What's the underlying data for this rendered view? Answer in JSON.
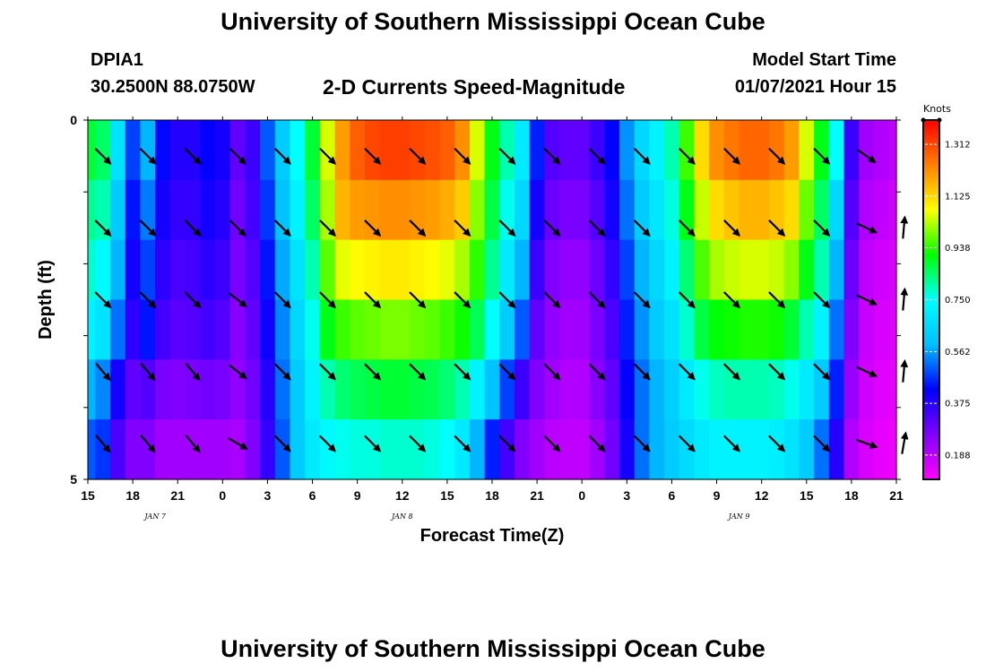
{
  "header": {
    "title": "University of Southern Mississippi Ocean Cube",
    "footer_title": "University of Southern Mississippi Ocean Cube",
    "station": "DPIA1",
    "coords": "30.2500N 88.0750W",
    "subtitle": "2-D Currents Speed-Magnitude",
    "model_label": "Model Start Time",
    "model_time": "01/07/2021 Hour 15"
  },
  "chart_data": {
    "type": "heatmap",
    "title": "2-D Currents Speed-Magnitude",
    "xlabel": "Forecast Time(Z)",
    "ylabel": "Depth (ft)",
    "colorbar_unit": "Knots",
    "x_ticks": [
      "15",
      "18",
      "21",
      "0",
      "3",
      "6",
      "9",
      "12",
      "15",
      "18",
      "21",
      "0",
      "3",
      "6",
      "9",
      "12",
      "15",
      "18",
      "21"
    ],
    "date_labels": [
      {
        "text": "JAN 7",
        "tick_index": 1.5
      },
      {
        "text": "JAN 8",
        "tick_index": 7
      },
      {
        "text": "JAN 9",
        "tick_index": 14.5
      }
    ],
    "y_tick_labels": [
      {
        "text": "0",
        "depth": 0
      },
      {
        "text": "5",
        "depth": 5
      }
    ],
    "ylim": [
      0,
      5
    ],
    "depth_levels": [
      0.5,
      1.5,
      2.5,
      3.5,
      4.5
    ],
    "colorbar_ticks": [
      "1.312",
      "1.125",
      "0.938",
      "0.750",
      "0.562",
      "0.375",
      "0.188"
    ],
    "colorbar_range": [
      0.1,
      1.4
    ],
    "colormap": [
      "#ff00ff",
      "#8000ff",
      "#0000ff",
      "#00bfff",
      "#00ffff",
      "#00ff00",
      "#ffff00",
      "#ff8000",
      "#ff0000"
    ],
    "grid": false,
    "time_hours": [
      0,
      1,
      2,
      3,
      4,
      5,
      6,
      7,
      8,
      9,
      10,
      11,
      12,
      13,
      14,
      15,
      16,
      17,
      18,
      19,
      20,
      21,
      22,
      23,
      24,
      25,
      26,
      27,
      28,
      29,
      30,
      31,
      32,
      33,
      34,
      35,
      36,
      37,
      38,
      39,
      40,
      41,
      42,
      43,
      44,
      45,
      46,
      47,
      48,
      49,
      50,
      51,
      52,
      53,
      54
    ],
    "speed_rows": [
      [
        0.88,
        0.85,
        0.68,
        0.48,
        0.58,
        0.43,
        0.38,
        0.38,
        0.42,
        0.4,
        0.3,
        0.35,
        0.5,
        0.62,
        0.75,
        0.88,
        1.05,
        1.2,
        1.28,
        1.31,
        1.32,
        1.32,
        1.31,
        1.3,
        1.28,
        1.22,
        1.05,
        0.9,
        0.8,
        0.7,
        0.45,
        0.32,
        0.3,
        0.3,
        0.35,
        0.42,
        0.55,
        0.65,
        0.72,
        0.8,
        0.95,
        1.12,
        1.22,
        1.25,
        1.27,
        1.27,
        1.25,
        1.2,
        1.05,
        0.9,
        0.75,
        0.35,
        0.22,
        0.2,
        0.18
      ],
      [
        0.82,
        0.8,
        0.62,
        0.44,
        0.53,
        0.4,
        0.36,
        0.36,
        0.4,
        0.38,
        0.28,
        0.34,
        0.47,
        0.6,
        0.72,
        0.85,
        1.02,
        1.17,
        1.2,
        1.21,
        1.22,
        1.22,
        1.21,
        1.2,
        1.18,
        1.14,
        1.0,
        0.87,
        0.76,
        0.65,
        0.4,
        0.29,
        0.27,
        0.27,
        0.32,
        0.4,
        0.52,
        0.62,
        0.69,
        0.77,
        0.9,
        1.04,
        1.12,
        1.15,
        1.17,
        1.17,
        1.15,
        1.12,
        0.98,
        0.85,
        0.65,
        0.32,
        0.2,
        0.18,
        0.16
      ],
      [
        0.78,
        0.74,
        0.58,
        0.4,
        0.48,
        0.37,
        0.33,
        0.34,
        0.37,
        0.35,
        0.27,
        0.32,
        0.44,
        0.57,
        0.68,
        0.8,
        0.97,
        1.06,
        1.08,
        1.09,
        1.1,
        1.1,
        1.09,
        1.08,
        1.06,
        1.02,
        0.94,
        0.82,
        0.7,
        0.58,
        0.35,
        0.26,
        0.24,
        0.24,
        0.29,
        0.36,
        0.48,
        0.58,
        0.65,
        0.72,
        0.84,
        0.96,
        1.02,
        1.04,
        1.05,
        1.05,
        1.04,
        1.0,
        0.9,
        0.8,
        0.58,
        0.29,
        0.18,
        0.16,
        0.15
      ],
      [
        0.72,
        0.68,
        0.52,
        0.37,
        0.44,
        0.34,
        0.31,
        0.32,
        0.34,
        0.32,
        0.25,
        0.3,
        0.41,
        0.54,
        0.65,
        0.76,
        0.9,
        0.95,
        0.97,
        0.98,
        0.99,
        0.99,
        0.98,
        0.97,
        0.95,
        0.92,
        0.86,
        0.75,
        0.62,
        0.5,
        0.3,
        0.24,
        0.22,
        0.22,
        0.27,
        0.33,
        0.45,
        0.55,
        0.62,
        0.68,
        0.78,
        0.87,
        0.91,
        0.92,
        0.93,
        0.93,
        0.92,
        0.88,
        0.8,
        0.72,
        0.52,
        0.26,
        0.17,
        0.15,
        0.14
      ],
      [
        0.58,
        0.54,
        0.4,
        0.3,
        0.32,
        0.27,
        0.26,
        0.27,
        0.28,
        0.27,
        0.24,
        0.28,
        0.38,
        0.52,
        0.62,
        0.72,
        0.8,
        0.84,
        0.86,
        0.87,
        0.88,
        0.88,
        0.87,
        0.86,
        0.84,
        0.8,
        0.72,
        0.6,
        0.48,
        0.35,
        0.26,
        0.22,
        0.2,
        0.2,
        0.25,
        0.3,
        0.42,
        0.52,
        0.58,
        0.63,
        0.7,
        0.76,
        0.79,
        0.8,
        0.8,
        0.8,
        0.79,
        0.76,
        0.7,
        0.62,
        0.45,
        0.23,
        0.16,
        0.14,
        0.13
      ],
      [
        0.5,
        0.47,
        0.33,
        0.26,
        0.26,
        0.22,
        0.22,
        0.22,
        0.22,
        0.22,
        0.21,
        0.26,
        0.36,
        0.5,
        0.62,
        0.7,
        0.74,
        0.76,
        0.77,
        0.77,
        0.78,
        0.78,
        0.78,
        0.77,
        0.75,
        0.7,
        0.58,
        0.45,
        0.34,
        0.26,
        0.22,
        0.19,
        0.18,
        0.18,
        0.22,
        0.28,
        0.4,
        0.52,
        0.58,
        0.62,
        0.66,
        0.7,
        0.72,
        0.72,
        0.72,
        0.72,
        0.71,
        0.68,
        0.62,
        0.52,
        0.38,
        0.2,
        0.15,
        0.13,
        0.12
      ]
    ],
    "vectors": [
      {
        "time_hours": [
          1,
          4,
          7,
          10,
          13,
          16,
          19,
          22,
          25,
          28,
          31,
          34,
          37,
          40,
          43,
          46,
          49,
          52
        ],
        "angle_deg": [
          45,
          45,
          45,
          45,
          45,
          45,
          45,
          45,
          45,
          45,
          45,
          45,
          45,
          45,
          45,
          45,
          45,
          35
        ],
        "depth": 0.5
      },
      {
        "time_hours": [
          1,
          4,
          7,
          10,
          13,
          16,
          19,
          22,
          25,
          28,
          31,
          34,
          37,
          40,
          43,
          46,
          49,
          52,
          54.5
        ],
        "angle_deg": [
          45,
          45,
          45,
          45,
          45,
          45,
          45,
          45,
          45,
          45,
          45,
          45,
          45,
          45,
          45,
          45,
          45,
          25,
          -85
        ],
        "depth": 1.5
      },
      {
        "time_hours": [
          1,
          4,
          7,
          10,
          13,
          16,
          19,
          22,
          25,
          28,
          31,
          34,
          37,
          40,
          43,
          46,
          49,
          52,
          54.5
        ],
        "angle_deg": [
          45,
          45,
          45,
          38,
          45,
          45,
          45,
          45,
          45,
          45,
          45,
          45,
          45,
          45,
          45,
          45,
          45,
          25,
          -85
        ],
        "depth": 2.5
      },
      {
        "time_hours": [
          1,
          4,
          7,
          10,
          13,
          16,
          19,
          22,
          25,
          28,
          31,
          34,
          37,
          40,
          43,
          46,
          49,
          52,
          54.5
        ],
        "angle_deg": [
          50,
          50,
          50,
          38,
          45,
          45,
          45,
          45,
          45,
          45,
          45,
          45,
          45,
          45,
          45,
          45,
          45,
          25,
          -85
        ],
        "depth": 3.5
      },
      {
        "time_hours": [
          1,
          4,
          7,
          10,
          13,
          16,
          19,
          22,
          25,
          28,
          31,
          34,
          37,
          40,
          43,
          46,
          49,
          52,
          54.5
        ],
        "angle_deg": [
          50,
          50,
          50,
          30,
          45,
          45,
          45,
          45,
          45,
          45,
          45,
          45,
          45,
          45,
          45,
          45,
          45,
          20,
          -80
        ],
        "depth": 4.5
      }
    ]
  }
}
